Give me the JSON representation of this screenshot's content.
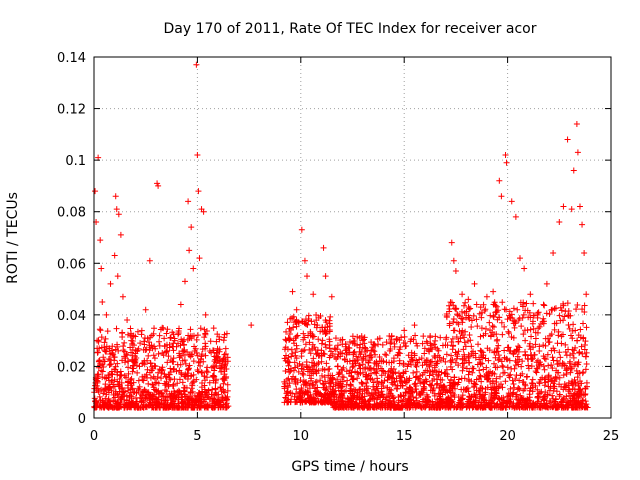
{
  "chart_data": {
    "type": "scatter",
    "title": "Day 170 of 2011, Rate Of TEC Index for receiver acor",
    "xlabel": "GPS time / hours",
    "ylabel": "ROTI / TECUs",
    "xlim": [
      0,
      25
    ],
    "ylim": [
      0,
      0.14
    ],
    "x_ticks": [
      "0",
      "5",
      "10",
      "15",
      "20",
      "25"
    ],
    "y_ticks": [
      "0",
      "0.02",
      "0.04",
      "0.06",
      "0.08",
      "0.1",
      "0.12",
      "0.14"
    ],
    "grid": true,
    "marker": "+",
    "color": "#ff0000",
    "series": [
      {
        "points": [
          [
            0.05,
            0.088
          ],
          [
            0.1,
            0.076
          ],
          [
            0.2,
            0.101
          ],
          [
            0.3,
            0.069
          ],
          [
            0.35,
            0.058
          ],
          [
            0.15,
            0.03
          ],
          [
            0.25,
            0.022
          ],
          [
            0.4,
            0.045
          ],
          [
            0.6,
            0.04
          ],
          [
            0.8,
            0.052
          ],
          [
            1.05,
            0.086
          ],
          [
            1.1,
            0.081
          ],
          [
            1.2,
            0.079
          ],
          [
            1.3,
            0.071
          ],
          [
            1.0,
            0.063
          ],
          [
            1.15,
            0.055
          ],
          [
            1.4,
            0.047
          ],
          [
            1.6,
            0.038
          ],
          [
            1.8,
            0.03
          ],
          [
            2.0,
            0.025
          ],
          [
            2.2,
            0.02
          ],
          [
            2.5,
            0.042
          ],
          [
            2.7,
            0.061
          ],
          [
            2.8,
            0.032
          ],
          [
            3.05,
            0.091
          ],
          [
            3.1,
            0.09
          ],
          [
            3.3,
            0.035
          ],
          [
            3.6,
            0.024
          ],
          [
            3.9,
            0.03
          ],
          [
            4.2,
            0.044
          ],
          [
            4.4,
            0.053
          ],
          [
            4.55,
            0.084
          ],
          [
            4.6,
            0.065
          ],
          [
            4.7,
            0.074
          ],
          [
            4.8,
            0.058
          ],
          [
            4.95,
            0.137
          ],
          [
            5.0,
            0.102
          ],
          [
            5.05,
            0.088
          ],
          [
            5.2,
            0.081
          ],
          [
            5.3,
            0.08
          ],
          [
            5.1,
            0.062
          ],
          [
            5.4,
            0.04
          ],
          [
            5.6,
            0.026
          ],
          [
            5.9,
            0.024
          ],
          [
            6.2,
            0.022
          ],
          [
            6.4,
            0.019
          ],
          [
            7.6,
            0.036
          ],
          [
            9.2,
            0.014
          ],
          [
            9.3,
            0.03
          ],
          [
            9.6,
            0.049
          ],
          [
            9.8,
            0.042
          ],
          [
            10.05,
            0.073
          ],
          [
            10.2,
            0.061
          ],
          [
            10.3,
            0.055
          ],
          [
            10.6,
            0.048
          ],
          [
            10.8,
            0.036
          ],
          [
            11.1,
            0.066
          ],
          [
            11.2,
            0.055
          ],
          [
            11.5,
            0.047
          ],
          [
            11.7,
            0.031
          ],
          [
            12.0,
            0.025
          ],
          [
            12.5,
            0.021
          ],
          [
            13.0,
            0.03
          ],
          [
            13.6,
            0.028
          ],
          [
            14.0,
            0.022
          ],
          [
            14.5,
            0.019
          ],
          [
            15.0,
            0.034
          ],
          [
            15.5,
            0.036
          ],
          [
            16.0,
            0.027
          ],
          [
            16.5,
            0.024
          ],
          [
            16.9,
            0.023
          ],
          [
            17.3,
            0.068
          ],
          [
            17.4,
            0.061
          ],
          [
            17.5,
            0.057
          ],
          [
            17.8,
            0.048
          ],
          [
            18.1,
            0.046
          ],
          [
            18.4,
            0.052
          ],
          [
            18.7,
            0.043
          ],
          [
            19.0,
            0.047
          ],
          [
            19.3,
            0.049
          ],
          [
            19.6,
            0.092
          ],
          [
            19.7,
            0.086
          ],
          [
            19.9,
            0.102
          ],
          [
            19.95,
            0.099
          ],
          [
            20.2,
            0.084
          ],
          [
            20.4,
            0.078
          ],
          [
            20.6,
            0.062
          ],
          [
            20.8,
            0.058
          ],
          [
            21.1,
            0.048
          ],
          [
            21.5,
            0.041
          ],
          [
            21.9,
            0.052
          ],
          [
            22.2,
            0.064
          ],
          [
            22.5,
            0.076
          ],
          [
            22.7,
            0.082
          ],
          [
            22.9,
            0.108
          ],
          [
            23.1,
            0.081
          ],
          [
            23.2,
            0.096
          ],
          [
            23.35,
            0.114
          ],
          [
            23.4,
            0.103
          ],
          [
            23.5,
            0.082
          ],
          [
            23.6,
            0.075
          ],
          [
            23.7,
            0.064
          ],
          [
            23.8,
            0.048
          ]
        ]
      }
    ],
    "noise_bands": [
      {
        "from": 0.0,
        "to": 6.5,
        "low": 0.004,
        "high": 0.035
      },
      {
        "from": 9.2,
        "to": 11.5,
        "low": 0.006,
        "high": 0.04
      },
      {
        "from": 11.5,
        "to": 17.0,
        "low": 0.004,
        "high": 0.032
      },
      {
        "from": 17.0,
        "to": 23.9,
        "low": 0.004,
        "high": 0.045
      }
    ]
  }
}
